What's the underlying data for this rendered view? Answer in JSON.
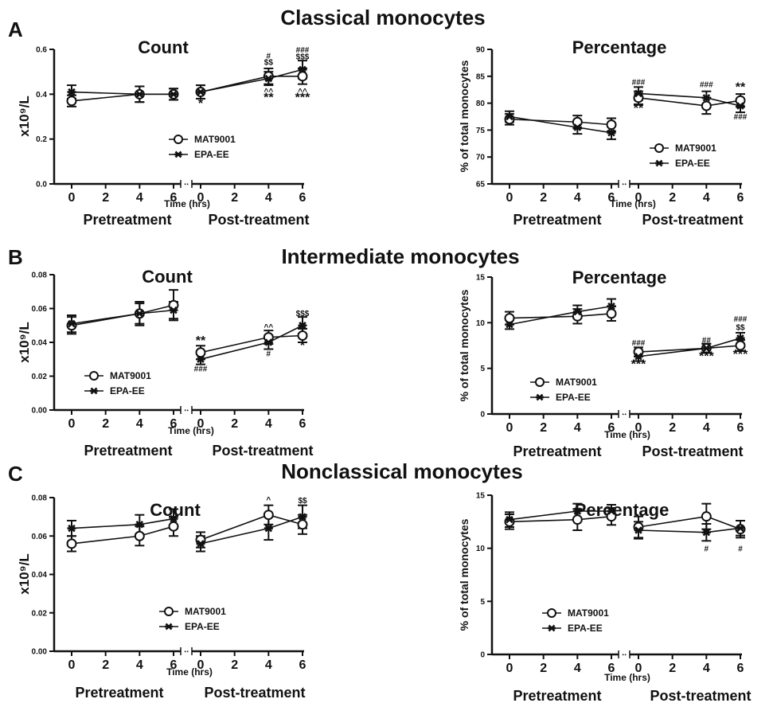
{
  "figure": {
    "panels": [
      {
        "letter": "A",
        "title": "Classical monocytes"
      },
      {
        "letter": "B",
        "title": "Intermediate monocytes"
      },
      {
        "letter": "C",
        "title": "Nonclassical monocytes"
      }
    ]
  },
  "chart_data": [
    {
      "type": "line",
      "panel": "A",
      "title": "Count",
      "ylabel": "x10⁹/L",
      "xlabel": "Time (hrs)",
      "group_labels": [
        "Pretreatment",
        "Post-treatment"
      ],
      "x_ticks": [
        "0",
        "2",
        "4",
        "6",
        "0",
        "2",
        "4",
        "6"
      ],
      "ylim": [
        0,
        0.6
      ],
      "yticks": [
        "0.0",
        "0.2",
        "0.4",
        "0.6"
      ],
      "legend_position": "center",
      "series": [
        {
          "name": "MAT9001",
          "marker": "circle",
          "pre": {
            "x": [
              0,
              4,
              6
            ],
            "y": [
              0.37,
              0.4,
              0.4
            ],
            "err": [
              0.025,
              0.035,
              0.025
            ]
          },
          "post": {
            "x": [
              0,
              4,
              6
            ],
            "y": [
              0.41,
              0.48,
              0.48
            ],
            "err": [
              0.03,
              0.035,
              0.035
            ]
          }
        },
        {
          "name": "EPA-EE",
          "marker": "star",
          "pre": {
            "x": [
              0,
              4,
              6
            ],
            "y": [
              0.41,
              0.4,
              0.4
            ],
            "err": [
              0.03,
              0.035,
              0.025
            ]
          },
          "post": {
            "x": [
              0,
              4,
              6
            ],
            "y": [
              0.41,
              0.47,
              0.51
            ],
            "err": [
              0.03,
              0.03,
              0.04
            ]
          }
        }
      ],
      "annotations": [
        {
          "segment": "post",
          "x": 0,
          "y": 0.37,
          "text": "*",
          "pos": "below"
        },
        {
          "segment": "post",
          "x": 4,
          "y": 0.43,
          "text": "^^",
          "pos": "below"
        },
        {
          "segment": "post",
          "x": 4,
          "y": 0.395,
          "text": "**",
          "pos": "below"
        },
        {
          "segment": "post",
          "x": 4,
          "y": 0.53,
          "text": "$$",
          "pos": "above"
        },
        {
          "segment": "post",
          "x": 4,
          "y": 0.56,
          "text": "#",
          "pos": "above"
        },
        {
          "segment": "post",
          "x": 6,
          "y": 0.43,
          "text": "^^",
          "pos": "below"
        },
        {
          "segment": "post",
          "x": 6,
          "y": 0.395,
          "text": "***",
          "pos": "below"
        },
        {
          "segment": "post",
          "x": 6,
          "y": 0.555,
          "text": "$$$",
          "pos": "above"
        },
        {
          "segment": "post",
          "x": 6,
          "y": 0.585,
          "text": "###",
          "pos": "above"
        }
      ]
    },
    {
      "type": "line",
      "panel": "A",
      "title": "Percentage",
      "ylabel": "% of total monocytes",
      "xlabel": "Time (hrs)",
      "group_labels": [
        "Pretreatment",
        "Post-treatment"
      ],
      "x_ticks": [
        "0",
        "2",
        "4",
        "6",
        "0",
        "2",
        "4",
        "6"
      ],
      "ylim": [
        65,
        90
      ],
      "yticks": [
        "65",
        "70",
        "75",
        "80",
        "85",
        "90"
      ],
      "legend_position": "lower-right",
      "series": [
        {
          "name": "MAT9001",
          "marker": "circle",
          "pre": {
            "x": [
              0,
              4,
              6
            ],
            "y": [
              77,
              76.5,
              76
            ],
            "err": [
              1,
              1.2,
              1.2
            ]
          },
          "post": {
            "x": [
              0,
              4,
              6
            ],
            "y": [
              81,
              79.5,
              80.5
            ],
            "err": [
              1.2,
              1.5,
              1.2
            ]
          }
        },
        {
          "name": "EPA-EE",
          "marker": "star",
          "pre": {
            "x": [
              0,
              4,
              6
            ],
            "y": [
              77.5,
              75.5,
              74.5
            ],
            "err": [
              1,
              1.2,
              1.2
            ]
          },
          "post": {
            "x": [
              0,
              4,
              6
            ],
            "y": [
              81.8,
              81,
              79.5
            ],
            "err": [
              1.2,
              1.2,
              1.2
            ]
          }
        }
      ],
      "annotations": [
        {
          "segment": "post",
          "x": 0,
          "y": 83.4,
          "text": "###",
          "pos": "above"
        },
        {
          "segment": "post",
          "x": 0,
          "y": 79.5,
          "text": "**",
          "pos": "below"
        },
        {
          "segment": "post",
          "x": 4,
          "y": 83,
          "text": "###",
          "pos": "above"
        },
        {
          "segment": "post",
          "x": 6,
          "y": 82.2,
          "text": "**",
          "pos": "above"
        },
        {
          "segment": "post",
          "x": 6,
          "y": 78.2,
          "text": "###",
          "pos": "below"
        }
      ]
    },
    {
      "type": "line",
      "panel": "B",
      "title": "Count",
      "ylabel": "x10⁹/L",
      "xlabel": "Time (hrs)",
      "group_labels": [
        "Pretreatment",
        "Post-treatment"
      ],
      "x_ticks": [
        "0",
        "2",
        "4",
        "6",
        "0",
        "2",
        "4",
        "6"
      ],
      "ylim": [
        0,
        0.08
      ],
      "yticks": [
        "0.00",
        "0.02",
        "0.04",
        "0.06",
        "0.08"
      ],
      "legend_position": "center",
      "series": [
        {
          "name": "MAT9001",
          "marker": "circle",
          "pre": {
            "x": [
              0,
              4,
              6
            ],
            "y": [
              0.05,
              0.057,
              0.062
            ],
            "err": [
              0.005,
              0.007,
              0.009
            ]
          },
          "post": {
            "x": [
              0,
              4,
              6
            ],
            "y": [
              0.034,
              0.043,
              0.044
            ],
            "err": [
              0.004,
              0.004,
              0.004
            ]
          }
        },
        {
          "name": "EPA-EE",
          "marker": "star",
          "pre": {
            "x": [
              0,
              4,
              6
            ],
            "y": [
              0.051,
              0.057,
              0.059
            ],
            "err": [
              0.005,
              0.006,
              0.005
            ]
          },
          "post": {
            "x": [
              0,
              4,
              6
            ],
            "y": [
              0.03,
              0.04,
              0.05
            ],
            "err": [
              0.003,
              0.004,
              0.005
            ]
          }
        }
      ],
      "annotations": [
        {
          "segment": "post",
          "x": 0,
          "y": 0.0385,
          "text": "**",
          "pos": "above"
        },
        {
          "segment": "post",
          "x": 0,
          "y": 0.0265,
          "text": "###",
          "pos": "below"
        },
        {
          "segment": "post",
          "x": 4,
          "y": 0.0475,
          "text": "^^",
          "pos": "above"
        },
        {
          "segment": "post",
          "x": 4,
          "y": 0.0355,
          "text": "#",
          "pos": "below"
        },
        {
          "segment": "post",
          "x": 6,
          "y": 0.0555,
          "text": "$$$",
          "pos": "above"
        },
        {
          "segment": "post",
          "x": 6,
          "y": 0.0395,
          "text": "*",
          "pos": "below"
        }
      ]
    },
    {
      "type": "line",
      "panel": "B",
      "title": "Percentage",
      "ylabel": "% of total monocytes",
      "xlabel": "Time (hrs)",
      "group_labels": [
        "Pretreatment",
        "Post-treatment"
      ],
      "x_ticks": [
        "0",
        "2",
        "4",
        "6",
        "0",
        "2",
        "4",
        "6"
      ],
      "ylim": [
        0,
        15
      ],
      "yticks": [
        "0",
        "5",
        "10",
        "15"
      ],
      "legend_position": "center",
      "series": [
        {
          "name": "MAT9001",
          "marker": "circle",
          "pre": {
            "x": [
              0,
              4,
              6
            ],
            "y": [
              10.5,
              10.7,
              11.0
            ],
            "err": [
              0.7,
              0.8,
              0.8
            ]
          },
          "post": {
            "x": [
              0,
              4,
              6
            ],
            "y": [
              6.8,
              7.2,
              7.5
            ],
            "err": [
              0.5,
              0.5,
              0.6
            ]
          }
        },
        {
          "name": "EPA-EE",
          "marker": "star",
          "pre": {
            "x": [
              0,
              4,
              6
            ],
            "y": [
              9.8,
              11.2,
              11.8
            ],
            "err": [
              0.5,
              0.7,
              0.8
            ]
          },
          "post": {
            "x": [
              0,
              4,
              6
            ],
            "y": [
              6.3,
              7.2,
              8.3
            ],
            "err": [
              0.5,
              0.5,
              0.6
            ]
          }
        }
      ],
      "annotations": [
        {
          "segment": "post",
          "x": 0,
          "y": 7.5,
          "text": "###",
          "pos": "above"
        },
        {
          "segment": "post",
          "x": 0,
          "y": 5.7,
          "text": "***",
          "pos": "below"
        },
        {
          "segment": "post",
          "x": 4,
          "y": 7.8,
          "text": "##",
          "pos": "above"
        },
        {
          "segment": "post",
          "x": 4,
          "y": 6.6,
          "text": "***",
          "pos": "below"
        },
        {
          "segment": "post",
          "x": 6,
          "y": 9.2,
          "text": "$$",
          "pos": "above"
        },
        {
          "segment": "post",
          "x": 6,
          "y": 10.1,
          "text": "###",
          "pos": "above"
        },
        {
          "segment": "post",
          "x": 6,
          "y": 6.8,
          "text": "***",
          "pos": "below"
        }
      ]
    },
    {
      "type": "line",
      "panel": "C",
      "title": "Count",
      "ylabel": "x10⁹/L",
      "xlabel": "Time (hrs)",
      "group_labels": [
        "Pretreatment",
        "Post-treatment"
      ],
      "x_ticks": [
        "0",
        "2",
        "4",
        "6",
        "0",
        "2",
        "4",
        "6"
      ],
      "ylim": [
        0,
        0.08
      ],
      "yticks": [
        "0.00",
        "0.02",
        "0.04",
        "0.06",
        "0.08"
      ],
      "legend_position": "center",
      "series": [
        {
          "name": "MAT9001",
          "marker": "circle",
          "pre": {
            "x": [
              0,
              4,
              6
            ],
            "y": [
              0.056,
              0.06,
              0.065
            ],
            "err": [
              0.004,
              0.005,
              0.005
            ]
          },
          "post": {
            "x": [
              0,
              4,
              6
            ],
            "y": [
              0.058,
              0.071,
              0.066
            ],
            "err": [
              0.004,
              0.005,
              0.005
            ]
          }
        },
        {
          "name": "EPA-EE",
          "marker": "star",
          "pre": {
            "x": [
              0,
              4,
              6
            ],
            "y": [
              0.064,
              0.066,
              0.069
            ],
            "err": [
              0.004,
              0.005,
              0.005
            ]
          },
          "post": {
            "x": [
              0,
              4,
              6
            ],
            "y": [
              0.056,
              0.064,
              0.07
            ],
            "err": [
              0.004,
              0.006,
              0.006
            ]
          }
        }
      ],
      "annotations": [
        {
          "segment": "post",
          "x": 4,
          "y": 0.0775,
          "text": "^",
          "pos": "above"
        },
        {
          "segment": "post",
          "x": 6,
          "y": 0.077,
          "text": "$$",
          "pos": "above"
        }
      ]
    },
    {
      "type": "line",
      "panel": "C",
      "title": "Percentage",
      "ylabel": "% of total monocytes",
      "xlabel": "Time (hrs)",
      "group_labels": [
        "Pretreatment",
        "Post-treatment"
      ],
      "x_ticks": [
        "0",
        "2",
        "4",
        "6",
        "0",
        "2",
        "4",
        "6"
      ],
      "ylim": [
        0,
        15
      ],
      "yticks": [
        "0",
        "5",
        "10",
        "15"
      ],
      "legend_position": "center",
      "series": [
        {
          "name": "MAT9001",
          "marker": "circle",
          "pre": {
            "x": [
              0,
              4,
              6
            ],
            "y": [
              12.5,
              12.7,
              13.0
            ],
            "err": [
              0.7,
              1.0,
              0.8
            ]
          },
          "post": {
            "x": [
              0,
              4,
              6
            ],
            "y": [
              12.0,
              13.0,
              11.8
            ],
            "err": [
              1.0,
              1.2,
              0.8
            ]
          }
        },
        {
          "name": "EPA-EE",
          "marker": "star",
          "pre": {
            "x": [
              0,
              4,
              6
            ],
            "y": [
              12.7,
              13.5,
              13.5
            ],
            "err": [
              0.7,
              0.7,
              0.6
            ]
          },
          "post": {
            "x": [
              0,
              4,
              6
            ],
            "y": [
              11.7,
              11.5,
              11.9
            ],
            "err": [
              0.8,
              0.8,
              0.7
            ]
          }
        }
      ],
      "annotations": [
        {
          "segment": "post",
          "x": 4,
          "y": 10.3,
          "text": "#",
          "pos": "below"
        },
        {
          "segment": "post",
          "x": 6,
          "y": 10.3,
          "text": "#",
          "pos": "below"
        }
      ]
    }
  ]
}
